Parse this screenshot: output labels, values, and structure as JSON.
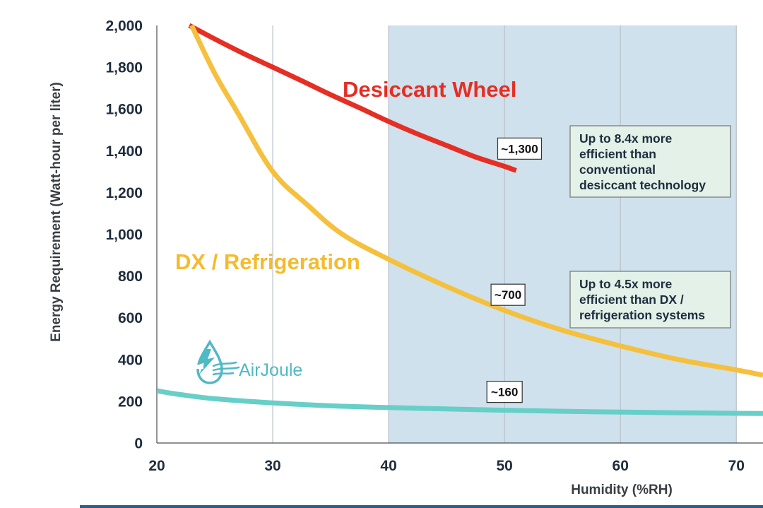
{
  "chart_data": {
    "type": "line",
    "xlabel": "Humidity (%RH)",
    "ylabel": "Energy Requirement (Watt-hour per liter)",
    "xlim": [
      20,
      72.3
    ],
    "ylim": [
      0,
      2000
    ],
    "x_ticks": [
      "20",
      "30",
      "40",
      "50",
      "60",
      "70"
    ],
    "y_ticks": [
      "0",
      "200",
      "400",
      "600",
      "800",
      "1,000",
      "1,200",
      "1,400",
      "1,600",
      "1,800",
      "2,000"
    ],
    "grid": "vertical",
    "shaded_region": {
      "x": [
        40,
        70
      ],
      "color": "#cfe1ec"
    },
    "series": [
      {
        "name": "Desiccant Wheel",
        "color": "#e52e24",
        "label_color": "#e52e24",
        "x": [
          22.8,
          25,
          27.5,
          30,
          32.5,
          35,
          37.5,
          40,
          42.5,
          45,
          47.5,
          50,
          51
        ],
        "values": [
          2000,
          1935,
          1865,
          1800,
          1735,
          1668,
          1605,
          1540,
          1480,
          1425,
          1370,
          1325,
          1305
        ]
      },
      {
        "name": "DX / Refrigeration",
        "color": "#f5c03d",
        "label_color": "#f5bb2e",
        "x": [
          23,
          25,
          27,
          30,
          33,
          36,
          40,
          45,
          50,
          55,
          60,
          65,
          70,
          72.3
        ],
        "values": [
          2000,
          1770,
          1580,
          1300,
          1140,
          1000,
          880,
          750,
          635,
          540,
          465,
          400,
          350,
          325
        ]
      },
      {
        "name": "AirJoule",
        "color": "#67cfc8",
        "x": [
          20,
          22,
          25,
          30,
          35,
          40,
          45,
          50,
          55,
          60,
          65,
          70,
          72.3
        ],
        "values": [
          250,
          232,
          212,
          192,
          178,
          170,
          163,
          157,
          152,
          148,
          145,
          142,
          141
        ]
      }
    ],
    "callouts": [
      {
        "text": "~1,300",
        "x": 51.3,
        "y": 1410
      },
      {
        "text": "~700",
        "x": 50.3,
        "y": 710
      },
      {
        "text": "~160",
        "x": 50.0,
        "y": 245
      }
    ],
    "notes": [
      {
        "lines": [
          "Up to 8.4x more",
          "efficient than",
          "conventional",
          "desiccant technology"
        ]
      },
      {
        "lines": [
          "Up to 4.5x more",
          "efficient than DX /",
          "refrigeration systems"
        ]
      }
    ]
  },
  "logo": {
    "text": "AirJoule",
    "color": "#4fb9c4"
  },
  "colors": {
    "grid": "#b9c1c8",
    "axis": "#4a4f55",
    "bottom_rule": "#2e5d87",
    "note_fill": "#e3f1e9",
    "note_border": "#7a7f7c"
  }
}
